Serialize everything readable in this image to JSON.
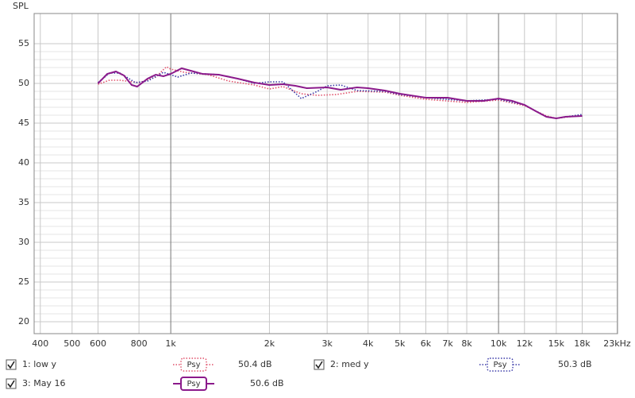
{
  "chart_data": {
    "type": "line",
    "y_label": "SPL",
    "log_x": true,
    "grid": true,
    "xlim": [
      383,
      23070
    ],
    "ylim": [
      18.5,
      58.8
    ],
    "yticks": [
      20,
      25,
      30,
      35,
      40,
      45,
      50,
      55
    ],
    "xticks": [
      400,
      500,
      600,
      800,
      {
        "value": 1000,
        "label": "1k"
      },
      {
        "value": 2000,
        "label": "2k"
      },
      {
        "value": 3000,
        "label": "3k"
      },
      {
        "value": 4000,
        "label": "4k"
      },
      {
        "value": 5000,
        "label": "5k"
      },
      {
        "value": 6000,
        "label": "6k"
      },
      {
        "value": 7000,
        "label": "7k"
      },
      {
        "value": 8000,
        "label": "8k"
      },
      {
        "value": 10000,
        "label": "10k"
      },
      {
        "value": 12000,
        "label": "12k"
      },
      {
        "value": 15000,
        "label": "15k"
      },
      {
        "value": 18000,
        "label": "18k"
      },
      {
        "value": 23000,
        "label": "23kHz"
      }
    ],
    "series": [
      {
        "name": "1: low y",
        "color": "#e0506a",
        "dash": true,
        "smoothing": "Psy",
        "level": "50.4 dB",
        "x": [
          600,
          650,
          700,
          800,
          900,
          970,
          1000,
          1100,
          1300,
          1500,
          1800,
          2000,
          2200,
          2500,
          2800,
          3200,
          3700,
          4500,
          5000,
          6000,
          8000,
          10000,
          12000,
          14000,
          15000,
          18000
        ],
        "values": [
          49.9,
          50.4,
          50.4,
          50.1,
          50.8,
          52.1,
          51.8,
          51.4,
          51.1,
          50.3,
          49.8,
          49.3,
          49.6,
          48.7,
          48.5,
          48.6,
          49.0,
          48.9,
          48.5,
          48.0,
          47.6,
          47.9,
          47.2,
          45.9,
          45.6,
          46.0
        ]
      },
      {
        "name": "2: med y",
        "color": "#3a3aa8",
        "dash": true,
        "smoothing": "Psy",
        "level": "50.3 dB",
        "x": [
          600,
          650,
          700,
          780,
          850,
          950,
          1050,
          1150,
          1400,
          1600,
          1800,
          2000,
          2200,
          2500,
          2800,
          3000,
          3300,
          3700,
          4500,
          5000,
          6000,
          8000,
          10000,
          12000,
          14000,
          15000,
          18000
        ],
        "values": [
          50.1,
          51.3,
          51.3,
          50.1,
          50.3,
          51.4,
          50.8,
          51.3,
          51.1,
          50.6,
          50.0,
          50.2,
          50.2,
          48.1,
          49.0,
          49.7,
          49.8,
          49.1,
          49.0,
          48.6,
          48.2,
          47.8,
          48.0,
          47.3,
          45.8,
          45.6,
          46.1
        ]
      },
      {
        "name": "3: May 16",
        "color": "#8b1a8b",
        "dash": false,
        "smoothing": "Psy",
        "level": "50.6 dB",
        "x": [
          600,
          640,
          680,
          720,
          760,
          790,
          850,
          900,
          950,
          1000,
          1080,
          1150,
          1250,
          1400,
          1600,
          1800,
          2000,
          2200,
          2400,
          2600,
          3000,
          3300,
          3700,
          4000,
          4500,
          5000,
          6000,
          7000,
          8000,
          9000,
          10000,
          11000,
          12000,
          13000,
          14000,
          15000,
          16000,
          18000
        ],
        "values": [
          50.0,
          51.2,
          51.5,
          51.0,
          49.8,
          49.6,
          50.6,
          51.1,
          50.9,
          51.2,
          51.9,
          51.6,
          51.2,
          51.1,
          50.6,
          50.1,
          49.8,
          49.9,
          49.7,
          49.4,
          49.5,
          49.2,
          49.5,
          49.4,
          49.1,
          48.7,
          48.2,
          48.2,
          47.8,
          47.8,
          48.1,
          47.8,
          47.3,
          46.5,
          45.8,
          45.6,
          45.8,
          45.9
        ]
      }
    ]
  }
}
